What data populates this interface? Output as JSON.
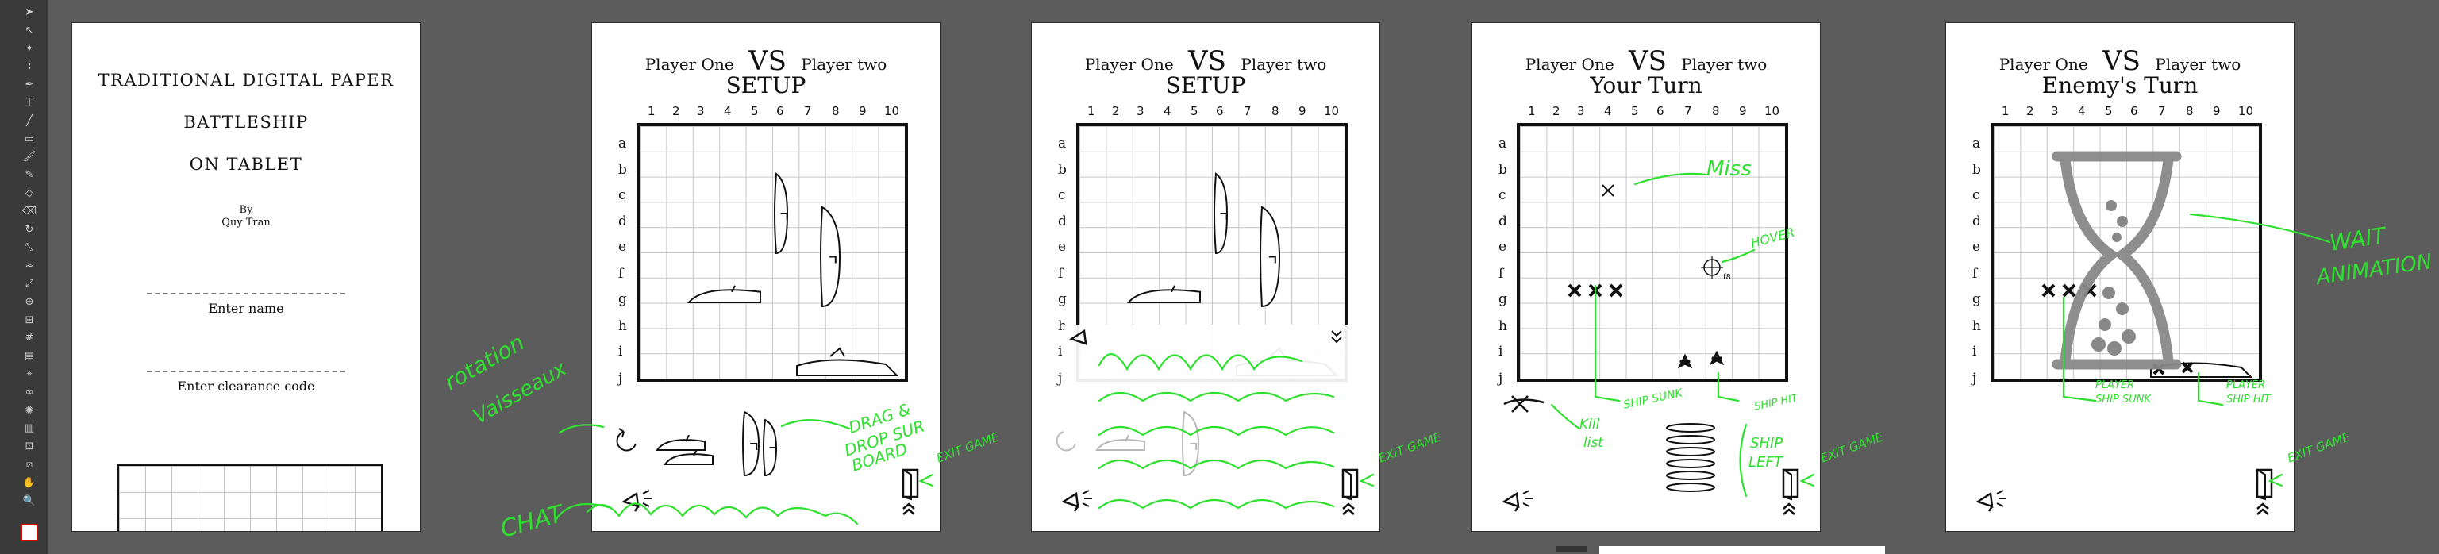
{
  "toolbar": {
    "tools": [
      "selection-tool-icon",
      "direct-selection-tool-icon",
      "magic-wand-icon",
      "lasso-icon",
      "pen-tool-icon",
      "type-tool-icon",
      "line-tool-icon",
      "rectangle-tool-icon",
      "paintbrush-icon",
      "pencil-icon",
      "shaper-icon",
      "eraser-icon",
      "rotate-tool-icon",
      "scale-tool-icon",
      "width-tool-icon",
      "free-transform-icon",
      "shape-builder-icon",
      "perspective-grid-icon",
      "mesh-tool-icon",
      "gradient-tool-icon",
      "eyedropper-icon",
      "blend-tool-icon",
      "symbol-sprayer-icon",
      "column-graph-icon",
      "artboard-tool-icon",
      "slice-tool-icon",
      "hand-tool-icon",
      "zoom-tool-icon"
    ]
  },
  "cover": {
    "title_line1": "TRADITIONAL  DIGITAL PAPER",
    "title_line2": "BATTLESHIP",
    "title_line3": "ON  TABLET",
    "by": "By",
    "author": "Quy Tran",
    "name_label": "Enter name",
    "code_label": "Enter clearance code"
  },
  "board": {
    "columns": [
      "1",
      "2",
      "3",
      "4",
      "5",
      "6",
      "7",
      "8",
      "9",
      "10"
    ],
    "rows": [
      "a",
      "b",
      "c",
      "d",
      "e",
      "f",
      "g",
      "h",
      "i",
      "j"
    ]
  },
  "screens": [
    {
      "player_one": "Player One",
      "vs": "VS",
      "player_two": "Player two",
      "subtitle": "SETUP"
    },
    {
      "player_one": "Player One",
      "vs": "VS",
      "player_two": "Player two",
      "subtitle": "SETUP"
    },
    {
      "player_one": "Player One",
      "vs": "VS",
      "player_two": "Player two",
      "subtitle": "Your Turn"
    },
    {
      "player_one": "Player One",
      "vs": "VS",
      "player_two": "Player two",
      "subtitle": "Enemy's Turn"
    }
  ],
  "annotations": {
    "rotation": "rotation",
    "vaisseaux": "Vaisseaux",
    "chat": "CHAT",
    "drag_drop": "DRAG &",
    "drop_sur": "DROP SUR",
    "board": "BOARD",
    "exit_game": "EXIT GAME",
    "miss": "Miss",
    "hover": "HOVER",
    "ship_sunk": "SHIP SUNK",
    "ship_hit": "SHIP HIT",
    "kill": "Kill",
    "list": "list",
    "ship": "SHIP",
    "left": "LEFT",
    "wait": "WAIT",
    "animation": "ANIMATION",
    "player_ship_sunk_1": "PLAYER",
    "player_ship_sunk_2": "SHIP SUNK",
    "player_ship_hit_1": "PLAYER",
    "player_ship_hit_2": "SHIP HIT",
    "hover_coord": "f8"
  }
}
